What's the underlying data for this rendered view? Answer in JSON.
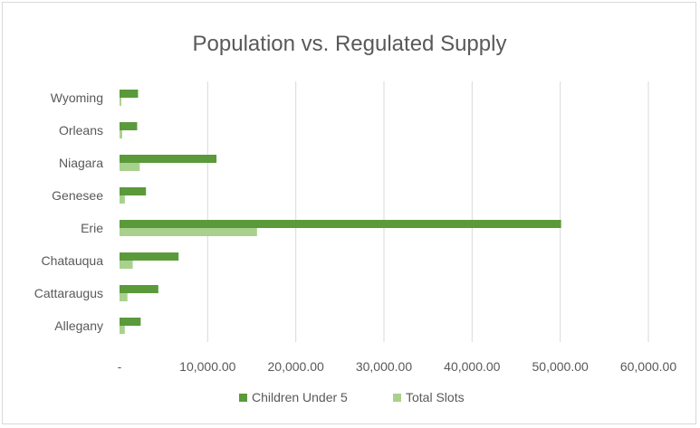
{
  "chart_data": {
    "type": "bar",
    "orientation": "horizontal",
    "title": "Population vs. Regulated Supply",
    "categories": [
      "Allegany",
      "Cattaraugus",
      "Chatauqua",
      "Erie",
      "Genesee",
      "Niagara",
      "Orleans",
      "Wyoming"
    ],
    "series": [
      {
        "name": "Children Under 5",
        "color": "#5b9a3b",
        "values": [
          2400,
          4400,
          6700,
          50100,
          3000,
          11000,
          2000,
          2100
        ]
      },
      {
        "name": "Total Slots",
        "color": "#a9d18e",
        "values": [
          600,
          900,
          1500,
          15600,
          600,
          2300,
          300,
          200
        ]
      }
    ],
    "xlim": [
      0,
      60000
    ],
    "xticks": [
      0,
      10000,
      20000,
      30000,
      40000,
      50000,
      60000
    ],
    "xtick_labels": [
      "-",
      "10,000.00",
      "20,000.00",
      "30,000.00",
      "40,000.00",
      "50,000.00",
      "60,000.00"
    ],
    "grid": true,
    "legend_position": "bottom",
    "gridline_color": "#d9d9d9"
  }
}
